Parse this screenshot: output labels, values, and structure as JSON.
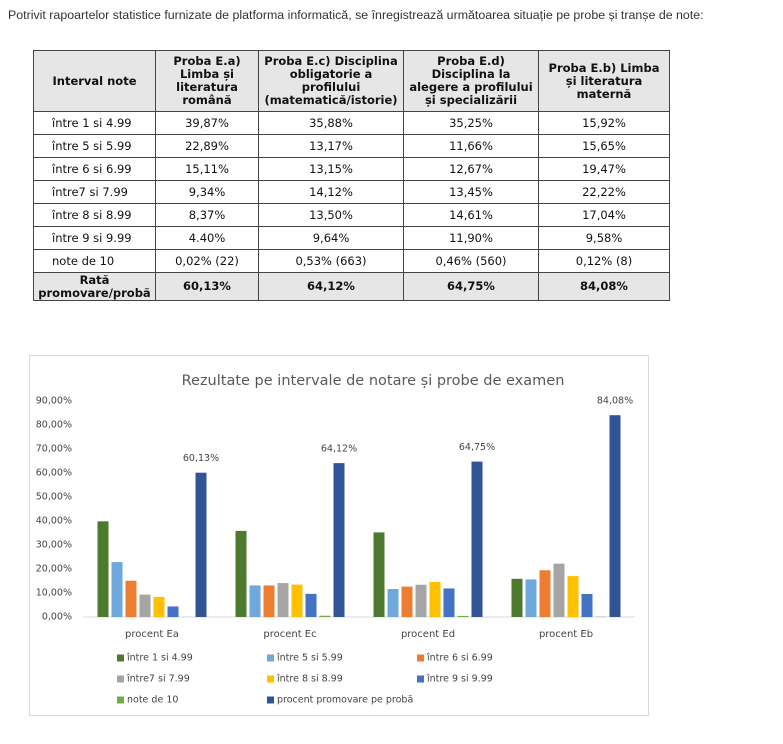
{
  "intro": "Potrivit rapoartelor statistice furnizate de platforma informatică, se înregistrează următoarea situație pe probe și tranșe de note:",
  "table": {
    "header": [
      "Interval note",
      "Proba E.a) Limba și literatura română",
      "Proba E.c) Disciplina obligatorie a profilului (matematică/istorie)",
      "Proba E.d) Disciplina la alegere a profilului și specializării",
      "Proba E.b) Limba și literatura maternă"
    ],
    "rows": [
      [
        "între 1 si 4.99",
        "39,87%",
        "35,88%",
        "35,25%",
        "15,92%"
      ],
      [
        "între 5 si 5.99",
        "22,89%",
        "13,17%",
        "11,66%",
        "15,65%"
      ],
      [
        "între 6 si 6.99",
        "15,11%",
        "13,15%",
        "12,67%",
        "19,47%"
      ],
      [
        "între7 si 7.99",
        "9,34%",
        "14,12%",
        "13,45%",
        "22,22%"
      ],
      [
        "între 8 si 8.99",
        "8,37%",
        "13,50%",
        "14,61%",
        "17,04%"
      ],
      [
        "între 9 si 9.99",
        "4.40%",
        "9,64%",
        "11,90%",
        "9,58%"
      ],
      [
        "note de 10",
        "0,02% (22)",
        "0,53% (663)",
        "0,46% (560)",
        "0,12% (8)"
      ],
      [
        "Rată promovare/probă",
        "60,13%",
        "64,12%",
        "64,75%",
        "84,08%"
      ]
    ]
  },
  "chart_data": {
    "type": "bar",
    "title": "Rezultate pe intervale de notare și probe de examen",
    "categories": [
      "procent Ea",
      "procent Ec",
      "procent Ed",
      "procent Eb"
    ],
    "ylim": [
      0,
      90
    ],
    "yticks": [
      {
        "value": 0,
        "label": "0,00%"
      },
      {
        "value": 10,
        "label": "10,00%"
      },
      {
        "value": 20,
        "label": "20,00%"
      },
      {
        "value": 30,
        "label": "30,00%"
      },
      {
        "value": 40,
        "label": "40,00%"
      },
      {
        "value": 50,
        "label": "50,00%"
      },
      {
        "value": 60,
        "label": "60,00%"
      },
      {
        "value": 70,
        "label": "70,00%"
      },
      {
        "value": 80,
        "label": "80,00%"
      },
      {
        "value": 90,
        "label": "90,00%"
      }
    ],
    "grid": false,
    "series": [
      {
        "name": "între 1 si 4.99",
        "color": "#4e7a2f",
        "values": [
          39.87,
          35.88,
          35.25,
          15.92
        ]
      },
      {
        "name": "între 5 si 5.99",
        "color": "#6fa8dc",
        "values": [
          22.89,
          13.17,
          11.66,
          15.65
        ]
      },
      {
        "name": "între 6 si 6.99",
        "color": "#ed7d31",
        "values": [
          15.11,
          13.15,
          12.67,
          19.47
        ]
      },
      {
        "name": "între7 si 7.99",
        "color": "#a5a5a5",
        "values": [
          9.34,
          14.12,
          13.45,
          22.22
        ]
      },
      {
        "name": "între 8 si 8.99",
        "color": "#ffc000",
        "values": [
          8.37,
          13.5,
          14.61,
          17.04
        ]
      },
      {
        "name": "între 9 si 9.99",
        "color": "#4472c4",
        "values": [
          4.4,
          9.64,
          11.9,
          9.58
        ]
      },
      {
        "name": "note de 10",
        "color": "#70ad47",
        "values": [
          0.02,
          0.53,
          0.46,
          0.12
        ]
      },
      {
        "name": "procent promovare pe probă",
        "color": "#2f5597",
        "values": [
          60.13,
          64.12,
          64.75,
          84.08
        ],
        "value_labels": [
          "60,13%",
          "64,12%",
          "64,75%",
          "84,08%"
        ]
      }
    ]
  }
}
